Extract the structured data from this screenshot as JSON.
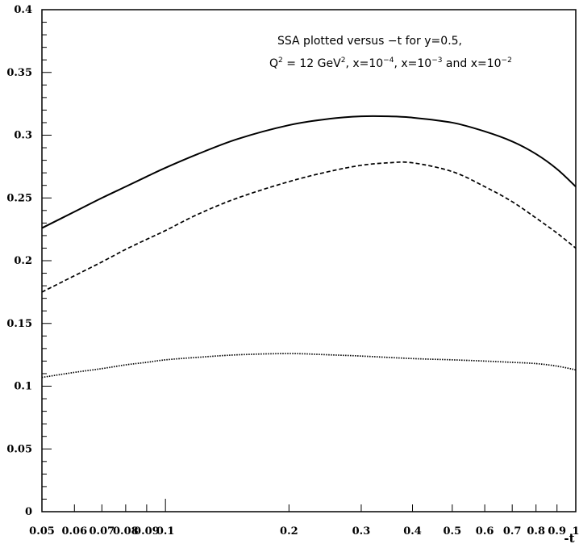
{
  "chart_data": {
    "type": "line",
    "xscale": "log",
    "xlim": [
      0.05,
      1
    ],
    "ylim": [
      0,
      0.4
    ],
    "xlabel": "-t",
    "ylabel": "",
    "grid": false,
    "x_ticks": [
      0.05,
      0.06,
      0.07,
      0.08,
      0.09,
      0.1,
      0.2,
      0.3,
      0.4,
      0.5,
      0.6,
      0.7,
      0.8,
      0.9,
      1
    ],
    "x_tick_labels": [
      "0.05",
      "0.06",
      "0.07",
      "0.08",
      "0.09",
      "0.1",
      "0.2",
      "0.3",
      "0.4",
      "0.5",
      "0.6",
      "0.7",
      "0.8",
      "0.9",
      "1"
    ],
    "y_ticks": [
      0,
      0.05,
      0.1,
      0.15,
      0.2,
      0.25,
      0.3,
      0.35,
      0.4
    ],
    "y_tick_labels": [
      "0",
      "0.05",
      "0.1",
      "0.15",
      "0.2",
      "0.25",
      "0.3",
      "0.35",
      "0.4"
    ],
    "annotation": {
      "line1": "SSA plotted versus −t for y=0.5,",
      "q": "Q",
      "q_exp": "2",
      "eq": " = 12 GeV",
      "gev_exp": "2",
      "x1": ", x=10",
      "x1_exp": "−4",
      "x2": ", x=10",
      "x2_exp": "−3",
      "x3": " and x=10",
      "x3_exp": "−2"
    },
    "series": [
      {
        "style": "solid",
        "x": [
          0.05,
          0.06,
          0.07,
          0.08,
          0.09,
          0.1,
          0.12,
          0.15,
          0.2,
          0.25,
          0.3,
          0.35,
          0.4,
          0.5,
          0.6,
          0.7,
          0.8,
          0.9,
          1.0
        ],
        "y": [
          0.226,
          0.239,
          0.25,
          0.259,
          0.267,
          0.274,
          0.285,
          0.297,
          0.308,
          0.313,
          0.315,
          0.315,
          0.314,
          0.31,
          0.303,
          0.295,
          0.285,
          0.273,
          0.259
        ]
      },
      {
        "style": "dashed",
        "x": [
          0.05,
          0.06,
          0.07,
          0.08,
          0.09,
          0.1,
          0.12,
          0.15,
          0.2,
          0.25,
          0.3,
          0.35,
          0.4,
          0.5,
          0.6,
          0.7,
          0.8,
          0.9,
          1.0
        ],
        "y": [
          0.175,
          0.188,
          0.199,
          0.209,
          0.217,
          0.224,
          0.237,
          0.25,
          0.263,
          0.271,
          0.276,
          0.278,
          0.278,
          0.271,
          0.259,
          0.247,
          0.234,
          0.222,
          0.21
        ]
      },
      {
        "style": "dotted",
        "x": [
          0.05,
          0.06,
          0.07,
          0.08,
          0.09,
          0.1,
          0.12,
          0.15,
          0.2,
          0.25,
          0.3,
          0.4,
          0.5,
          0.6,
          0.7,
          0.8,
          0.9,
          1.0
        ],
        "y": [
          0.107,
          0.111,
          0.114,
          0.117,
          0.119,
          0.121,
          0.123,
          0.125,
          0.126,
          0.125,
          0.124,
          0.122,
          0.121,
          0.12,
          0.119,
          0.118,
          0.116,
          0.113
        ]
      }
    ]
  }
}
